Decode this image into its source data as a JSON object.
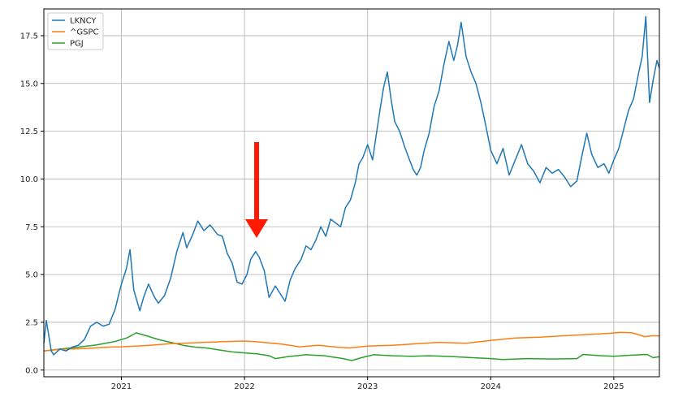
{
  "chart_data": {
    "type": "line",
    "title": "",
    "xlabel": "",
    "ylabel": "",
    "xlim": [
      2020.37,
      2025.37
    ],
    "ylim": [
      -0.35,
      18.9
    ],
    "grid": true,
    "legend_position": "top-left",
    "x_ticks": [
      {
        "value": 2021,
        "label": "2021"
      },
      {
        "value": 2022,
        "label": "2022"
      },
      {
        "value": 2023,
        "label": "2023"
      },
      {
        "value": 2024,
        "label": "2024"
      },
      {
        "value": 2025,
        "label": "2025"
      }
    ],
    "y_ticks": [
      {
        "value": 0,
        "label": "0.0"
      },
      {
        "value": 2.5,
        "label": "2.5"
      },
      {
        "value": 5,
        "label": "5.0"
      },
      {
        "value": 7.5,
        "label": "7.5"
      },
      {
        "value": 10,
        "label": "10.0"
      },
      {
        "value": 12.5,
        "label": "12.5"
      },
      {
        "value": 15,
        "label": "15.0"
      },
      {
        "value": 17.5,
        "label": "17.5"
      }
    ],
    "series": [
      {
        "name": "LKNCY",
        "color": "#1f77b4",
        "points": [
          [
            2020.37,
            1.4
          ],
          [
            2020.39,
            2.6
          ],
          [
            2020.41,
            1.8
          ],
          [
            2020.43,
            1.0
          ],
          [
            2020.45,
            0.8
          ],
          [
            2020.5,
            1.1
          ],
          [
            2020.55,
            1.0
          ],
          [
            2020.6,
            1.2
          ],
          [
            2020.65,
            1.3
          ],
          [
            2020.7,
            1.6
          ],
          [
            2020.75,
            2.3
          ],
          [
            2020.8,
            2.5
          ],
          [
            2020.85,
            2.3
          ],
          [
            2020.9,
            2.4
          ],
          [
            2020.95,
            3.2
          ],
          [
            2020.98,
            4.0
          ],
          [
            2021.0,
            4.5
          ],
          [
            2021.04,
            5.3
          ],
          [
            2021.07,
            6.3
          ],
          [
            2021.1,
            4.2
          ],
          [
            2021.15,
            3.1
          ],
          [
            2021.18,
            3.8
          ],
          [
            2021.22,
            4.5
          ],
          [
            2021.27,
            3.8
          ],
          [
            2021.3,
            3.5
          ],
          [
            2021.35,
            3.9
          ],
          [
            2021.4,
            4.8
          ],
          [
            2021.45,
            6.2
          ],
          [
            2021.5,
            7.2
          ],
          [
            2021.53,
            6.4
          ],
          [
            2021.58,
            7.1
          ],
          [
            2021.62,
            7.8
          ],
          [
            2021.67,
            7.3
          ],
          [
            2021.72,
            7.6
          ],
          [
            2021.78,
            7.1
          ],
          [
            2021.82,
            7.0
          ],
          [
            2021.86,
            6.1
          ],
          [
            2021.9,
            5.6
          ],
          [
            2021.94,
            4.6
          ],
          [
            2021.98,
            4.5
          ],
          [
            2022.02,
            5.0
          ],
          [
            2022.05,
            5.8
          ],
          [
            2022.09,
            6.2
          ],
          [
            2022.12,
            5.9
          ],
          [
            2022.16,
            5.2
          ],
          [
            2022.2,
            3.8
          ],
          [
            2022.25,
            4.4
          ],
          [
            2022.29,
            4.0
          ],
          [
            2022.33,
            3.6
          ],
          [
            2022.37,
            4.7
          ],
          [
            2022.41,
            5.3
          ],
          [
            2022.46,
            5.8
          ],
          [
            2022.5,
            6.5
          ],
          [
            2022.54,
            6.3
          ],
          [
            2022.58,
            6.8
          ],
          [
            2022.62,
            7.5
          ],
          [
            2022.66,
            7.0
          ],
          [
            2022.7,
            7.9
          ],
          [
            2022.74,
            7.7
          ],
          [
            2022.78,
            7.5
          ],
          [
            2022.82,
            8.5
          ],
          [
            2022.86,
            8.9
          ],
          [
            2022.9,
            9.8
          ],
          [
            2022.93,
            10.8
          ],
          [
            2022.96,
            11.1
          ],
          [
            2023.0,
            11.8
          ],
          [
            2023.04,
            11.0
          ],
          [
            2023.07,
            12.3
          ],
          [
            2023.1,
            13.6
          ],
          [
            2023.13,
            14.8
          ],
          [
            2023.16,
            15.6
          ],
          [
            2023.19,
            14.2
          ],
          [
            2023.22,
            13.0
          ],
          [
            2023.26,
            12.5
          ],
          [
            2023.3,
            11.7
          ],
          [
            2023.34,
            11.0
          ],
          [
            2023.37,
            10.5
          ],
          [
            2023.4,
            10.2
          ],
          [
            2023.43,
            10.6
          ],
          [
            2023.46,
            11.5
          ],
          [
            2023.5,
            12.4
          ],
          [
            2023.54,
            13.8
          ],
          [
            2023.58,
            14.6
          ],
          [
            2023.62,
            16.0
          ],
          [
            2023.66,
            17.2
          ],
          [
            2023.7,
            16.2
          ],
          [
            2023.73,
            17.0
          ],
          [
            2023.76,
            18.2
          ],
          [
            2023.8,
            16.4
          ],
          [
            2023.84,
            15.6
          ],
          [
            2023.88,
            15.0
          ],
          [
            2023.92,
            14.0
          ],
          [
            2023.96,
            12.8
          ],
          [
            2024.0,
            11.5
          ],
          [
            2024.05,
            10.8
          ],
          [
            2024.1,
            11.6
          ],
          [
            2024.15,
            10.2
          ],
          [
            2024.2,
            11.0
          ],
          [
            2024.25,
            11.8
          ],
          [
            2024.3,
            10.8
          ],
          [
            2024.35,
            10.4
          ],
          [
            2024.4,
            9.8
          ],
          [
            2024.45,
            10.6
          ],
          [
            2024.5,
            10.3
          ],
          [
            2024.55,
            10.5
          ],
          [
            2024.6,
            10.1
          ],
          [
            2024.65,
            9.6
          ],
          [
            2024.7,
            9.9
          ],
          [
            2024.74,
            11.2
          ],
          [
            2024.78,
            12.4
          ],
          [
            2024.82,
            11.3
          ],
          [
            2024.87,
            10.6
          ],
          [
            2024.92,
            10.8
          ],
          [
            2024.96,
            10.3
          ],
          [
            2025.0,
            11.0
          ],
          [
            2025.04,
            11.6
          ],
          [
            2025.08,
            12.6
          ],
          [
            2025.12,
            13.6
          ],
          [
            2025.16,
            14.2
          ],
          [
            2025.2,
            15.5
          ],
          [
            2025.23,
            16.4
          ],
          [
            2025.26,
            18.5
          ],
          [
            2025.29,
            14.0
          ],
          [
            2025.32,
            15.2
          ],
          [
            2025.35,
            16.2
          ],
          [
            2025.37,
            15.8
          ]
        ]
      },
      {
        "name": "^GSPC",
        "color": "#ff7f0e",
        "points": [
          [
            2020.37,
            1.0
          ],
          [
            2020.5,
            1.08
          ],
          [
            2020.7,
            1.13
          ],
          [
            2020.9,
            1.2
          ],
          [
            2021.0,
            1.22
          ],
          [
            2021.2,
            1.28
          ],
          [
            2021.4,
            1.38
          ],
          [
            2021.6,
            1.43
          ],
          [
            2021.8,
            1.48
          ],
          [
            2022.0,
            1.52
          ],
          [
            2022.1,
            1.48
          ],
          [
            2022.3,
            1.36
          ],
          [
            2022.45,
            1.22
          ],
          [
            2022.6,
            1.3
          ],
          [
            2022.75,
            1.2
          ],
          [
            2022.85,
            1.16
          ],
          [
            2023.0,
            1.25
          ],
          [
            2023.2,
            1.3
          ],
          [
            2023.4,
            1.38
          ],
          [
            2023.58,
            1.45
          ],
          [
            2023.8,
            1.4
          ],
          [
            2024.0,
            1.55
          ],
          [
            2024.2,
            1.68
          ],
          [
            2024.4,
            1.72
          ],
          [
            2024.55,
            1.78
          ],
          [
            2024.75,
            1.85
          ],
          [
            2024.95,
            1.92
          ],
          [
            2025.05,
            1.97
          ],
          [
            2025.15,
            1.95
          ],
          [
            2025.25,
            1.75
          ],
          [
            2025.32,
            1.8
          ],
          [
            2025.37,
            1.78
          ]
        ]
      },
      {
        "name": "PGJ",
        "color": "#2ca02c",
        "points": [
          [
            2020.37,
            1.0
          ],
          [
            2020.5,
            1.1
          ],
          [
            2020.65,
            1.2
          ],
          [
            2020.8,
            1.32
          ],
          [
            2020.95,
            1.5
          ],
          [
            2021.05,
            1.7
          ],
          [
            2021.12,
            1.95
          ],
          [
            2021.2,
            1.8
          ],
          [
            2021.3,
            1.6
          ],
          [
            2021.4,
            1.45
          ],
          [
            2021.5,
            1.3
          ],
          [
            2021.6,
            1.2
          ],
          [
            2021.7,
            1.15
          ],
          [
            2021.8,
            1.05
          ],
          [
            2021.9,
            0.95
          ],
          [
            2022.0,
            0.9
          ],
          [
            2022.1,
            0.85
          ],
          [
            2022.2,
            0.75
          ],
          [
            2022.25,
            0.6
          ],
          [
            2022.35,
            0.7
          ],
          [
            2022.5,
            0.8
          ],
          [
            2022.65,
            0.75
          ],
          [
            2022.8,
            0.6
          ],
          [
            2022.87,
            0.5
          ],
          [
            2022.95,
            0.65
          ],
          [
            2023.05,
            0.8
          ],
          [
            2023.2,
            0.75
          ],
          [
            2023.35,
            0.72
          ],
          [
            2023.5,
            0.75
          ],
          [
            2023.7,
            0.7
          ],
          [
            2023.85,
            0.65
          ],
          [
            2024.0,
            0.6
          ],
          [
            2024.1,
            0.55
          ],
          [
            2024.3,
            0.6
          ],
          [
            2024.5,
            0.58
          ],
          [
            2024.7,
            0.6
          ],
          [
            2024.75,
            0.82
          ],
          [
            2024.9,
            0.75
          ],
          [
            2025.0,
            0.72
          ],
          [
            2025.15,
            0.78
          ],
          [
            2025.27,
            0.82
          ],
          [
            2025.32,
            0.65
          ],
          [
            2025.37,
            0.7
          ]
        ]
      }
    ]
  }
}
